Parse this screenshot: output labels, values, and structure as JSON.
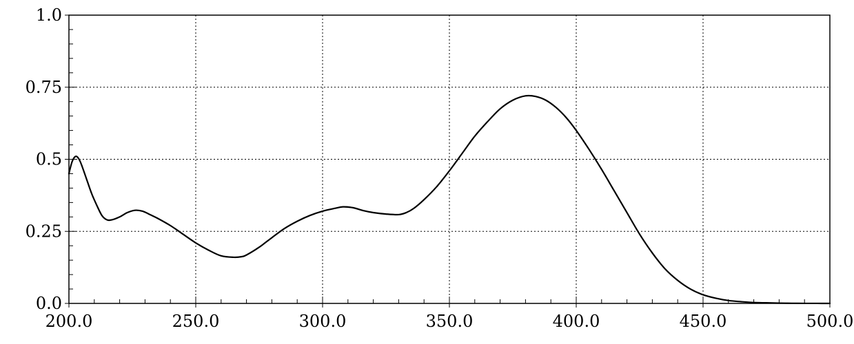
{
  "chart_data": {
    "type": "line",
    "title": "",
    "xlabel": "",
    "ylabel": "",
    "xlim": [
      200,
      500
    ],
    "ylim": [
      0,
      1
    ],
    "grid": true,
    "x_ticks": [
      200,
      250,
      300,
      350,
      400,
      450,
      500
    ],
    "x_tick_labels": [
      "200.0",
      "250.0",
      "300.0",
      "350.0",
      "400.0",
      "450.0",
      "500.0"
    ],
    "y_ticks": [
      0,
      0.25,
      0.5,
      0.75,
      1
    ],
    "y_tick_labels": [
      "0.0",
      "0.25",
      "0.5",
      "0.75",
      "1.0"
    ],
    "series": [
      {
        "color": "#000000",
        "x": [
          200,
          201,
          202,
          203,
          204,
          205,
          207,
          209,
          211,
          213,
          215,
          217,
          220,
          223,
          226,
          229,
          232,
          235,
          240,
          245,
          250,
          255,
          260,
          265,
          268,
          270,
          275,
          280,
          285,
          290,
          295,
          300,
          305,
          308,
          312,
          316,
          320,
          325,
          330,
          333,
          336,
          340,
          345,
          350,
          355,
          360,
          365,
          370,
          375,
          380,
          384,
          388,
          392,
          396,
          400,
          405,
          410,
          415,
          420,
          425,
          430,
          435,
          440,
          445,
          450,
          455,
          460,
          465,
          470,
          475,
          480,
          485,
          490,
          495,
          500
        ],
        "y": [
          0.45,
          0.485,
          0.505,
          0.51,
          0.5,
          0.48,
          0.43,
          0.38,
          0.34,
          0.305,
          0.29,
          0.29,
          0.3,
          0.315,
          0.323,
          0.32,
          0.308,
          0.295,
          0.27,
          0.24,
          0.21,
          0.185,
          0.165,
          0.16,
          0.162,
          0.168,
          0.195,
          0.228,
          0.26,
          0.285,
          0.305,
          0.32,
          0.33,
          0.335,
          0.332,
          0.322,
          0.315,
          0.31,
          0.308,
          0.315,
          0.33,
          0.36,
          0.405,
          0.46,
          0.52,
          0.58,
          0.63,
          0.675,
          0.705,
          0.72,
          0.718,
          0.705,
          0.68,
          0.645,
          0.6,
          0.535,
          0.465,
          0.39,
          0.315,
          0.24,
          0.175,
          0.12,
          0.08,
          0.05,
          0.03,
          0.018,
          0.01,
          0.006,
          0.003,
          0.002,
          0.001,
          0.0005,
          0.0002,
          0.0001,
          0
        ]
      }
    ]
  }
}
